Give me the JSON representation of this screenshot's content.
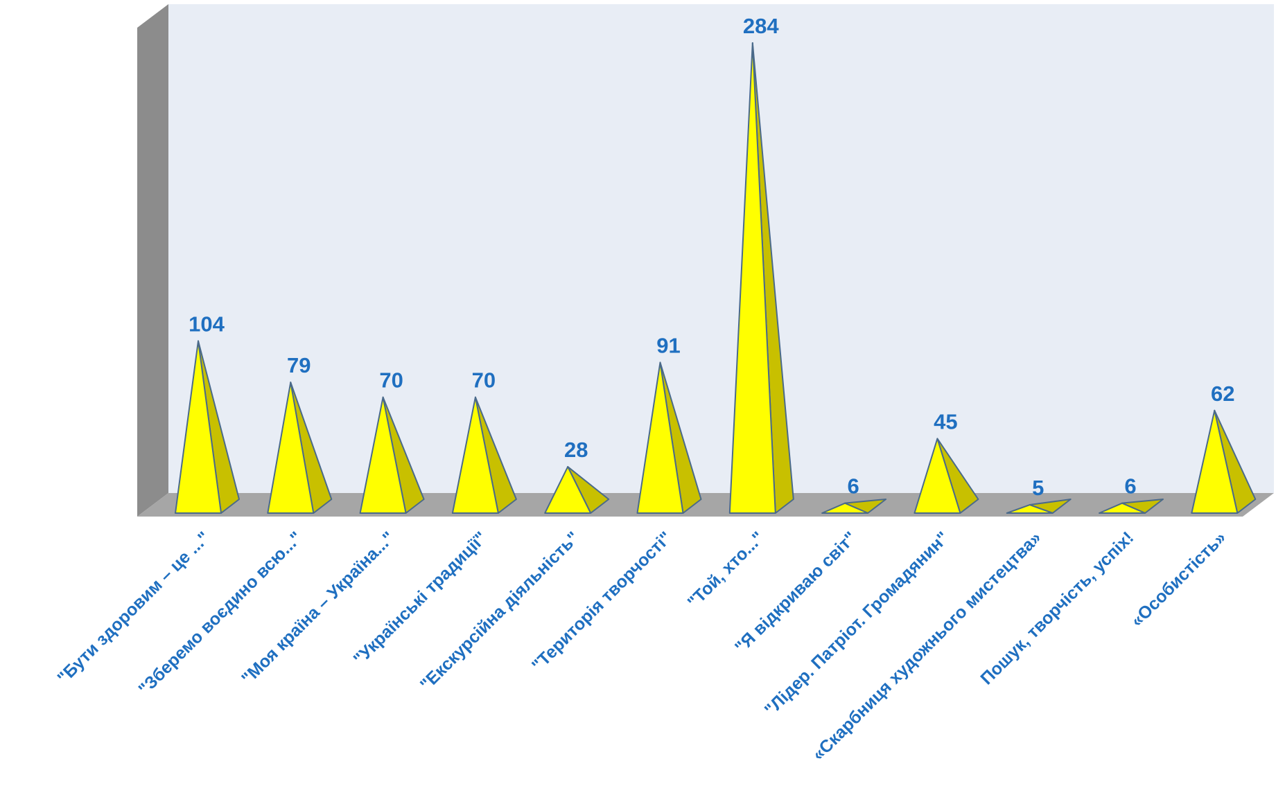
{
  "chart_data": {
    "type": "bar",
    "style": "3d-pyramid",
    "categories": [
      "\"Бути здоровим – це ...\"",
      "\"Зберемо воєдино всю...\"",
      "\"Моя країна – Україна...\"",
      "\"Українські  традиції\"",
      "\"Екскурсійна діяльність\"",
      "\"Територія творчості\"",
      "\"Той, хто...\"",
      "\"Я відкриваю світ\"",
      "\"Лідер. Патріот. Громадянин\"",
      "«Скарбниця художнього мистецтва»",
      "Пошук, творчість, успіх!",
      "«Особистість»"
    ],
    "values": [
      104,
      79,
      70,
      70,
      28,
      91,
      284,
      6,
      45,
      5,
      6,
      62
    ],
    "value_labels": [
      "104",
      "79",
      "70",
      "70",
      "28",
      "91",
      "284",
      "6",
      "45",
      "5",
      "6",
      "62"
    ],
    "ylim": [
      0,
      300
    ],
    "grid": false,
    "legend": "none",
    "colors": {
      "pyramid_front": "#ffff00",
      "pyramid_side": "#c8c000",
      "pyramid_outline": "#4a6a8a",
      "wall": "#e8edf5",
      "wall_side": "#8c8c8c",
      "floor": "#a6a6a6",
      "label": "#1f6fc0"
    }
  }
}
